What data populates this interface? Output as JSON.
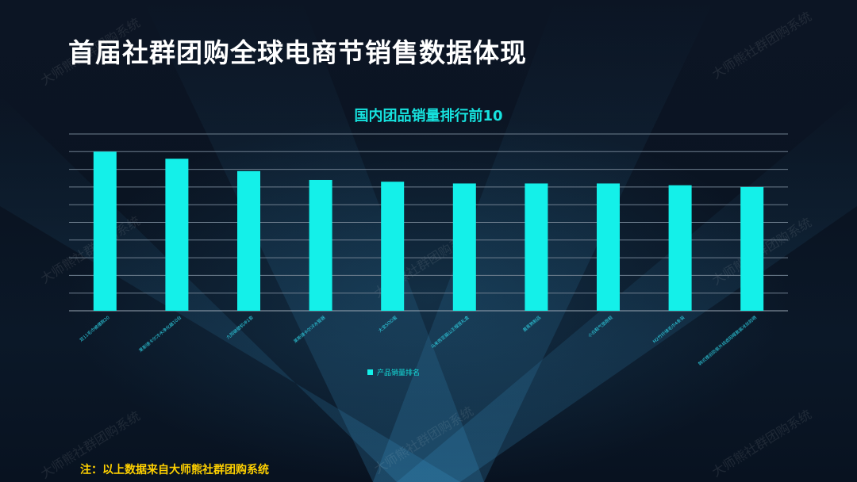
{
  "page_title": "首届社群团购全球电商节销售数据体现",
  "footnote": "注：以上数据来自大师熊社群团购系统",
  "watermark_text": "大师熊社群团购系统",
  "colors": {
    "bar": "#14f0e9",
    "title_accent": "#16e3df",
    "footnote": "#ffd100",
    "gridline": "#6f7f8f"
  },
  "chart_data": {
    "type": "bar",
    "title": "国内团品销量排行前10",
    "categories": [
      "双11毛巾被爆款20",
      "莱斯德卡尔冷水净化器10台",
      "九阳破壁机冲1套",
      "莱斯德卡尔冷水管器",
      "大宝SOD蜜",
      "马来西亚猫山王榴莲礼盒",
      "黄蒸熟制品",
      "小白鞋气垫跑鞋",
      "M2竹纤维毛巾4条装",
      "韩式楼后防紫外线遮阳帽套装冰丝防晒"
    ],
    "series": [
      {
        "name": "产品销量排名",
        "values": [
          9.0,
          8.6,
          7.9,
          7.4,
          7.3,
          7.2,
          7.2,
          7.2,
          7.1,
          7.0
        ]
      }
    ],
    "ylim": [
      0,
      10
    ],
    "grid": true,
    "legend_position": "bottom"
  }
}
